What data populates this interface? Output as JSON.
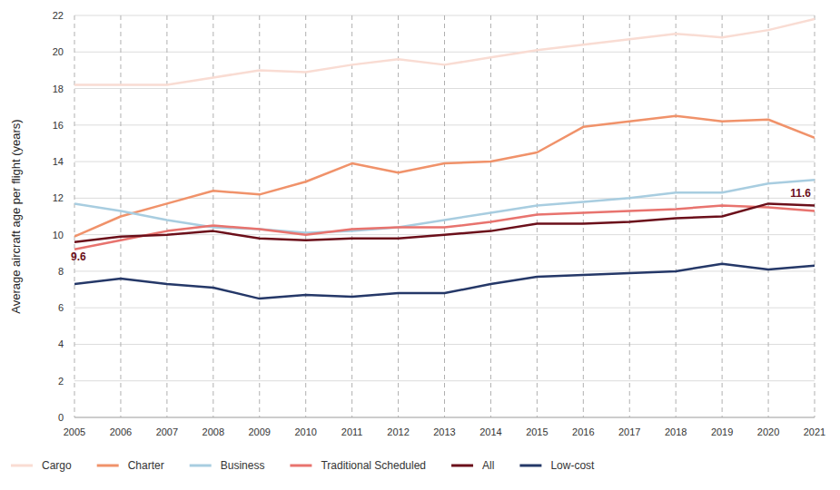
{
  "chart_data": {
    "type": "line",
    "y_label": "Average aircraft age per flight (years)",
    "x": [
      2005,
      2006,
      2007,
      2008,
      2009,
      2010,
      2011,
      2012,
      2013,
      2014,
      2015,
      2016,
      2017,
      2018,
      2019,
      2020,
      2021
    ],
    "xlim": [
      2005,
      2021
    ],
    "xticks": [
      2005,
      2006,
      2007,
      2008,
      2009,
      2010,
      2011,
      2012,
      2013,
      2014,
      2015,
      2016,
      2017,
      2018,
      2019,
      2020,
      2021
    ],
    "ylim": [
      0,
      22
    ],
    "yticks": [
      0,
      2,
      4,
      6,
      8,
      10,
      12,
      14,
      16,
      18,
      20,
      22
    ],
    "grid": true,
    "legend": "bottom",
    "series": [
      {
        "name": "Cargo",
        "color": "#f9dcd3",
        "values": [
          18.2,
          18.2,
          18.2,
          18.6,
          19.0,
          18.9,
          19.3,
          19.6,
          19.3,
          19.7,
          20.1,
          20.4,
          20.7,
          21.0,
          20.8,
          21.2,
          21.8
        ]
      },
      {
        "name": "Charter",
        "color": "#f0926a",
        "values": [
          9.9,
          11.0,
          11.7,
          12.4,
          12.2,
          12.9,
          13.9,
          13.4,
          13.9,
          14.0,
          14.5,
          15.9,
          16.2,
          16.5,
          16.2,
          16.3,
          15.3
        ]
      },
      {
        "name": "Business",
        "color": "#a8cde0",
        "values": [
          11.7,
          11.3,
          10.8,
          10.4,
          10.3,
          10.1,
          10.2,
          10.4,
          10.8,
          11.2,
          11.6,
          11.8,
          12.0,
          12.3,
          12.3,
          12.8,
          13.0
        ]
      },
      {
        "name": "Traditional Scheduled",
        "color": "#e8736e",
        "values": [
          9.2,
          9.7,
          10.2,
          10.5,
          10.3,
          10.0,
          10.3,
          10.4,
          10.4,
          10.7,
          11.1,
          11.2,
          11.3,
          11.4,
          11.6,
          11.5,
          11.3
        ]
      },
      {
        "name": "All",
        "color": "#6b0f1a",
        "values": [
          9.6,
          9.9,
          10.0,
          10.2,
          9.8,
          9.7,
          9.8,
          9.8,
          10.0,
          10.2,
          10.6,
          10.6,
          10.7,
          10.9,
          11.0,
          11.7,
          11.6
        ]
      },
      {
        "name": "Low-cost",
        "color": "#253868",
        "values": [
          7.3,
          7.6,
          7.3,
          7.1,
          6.5,
          6.7,
          6.6,
          6.8,
          6.8,
          7.3,
          7.7,
          7.8,
          7.9,
          8.0,
          8.4,
          8.1,
          8.3
        ]
      }
    ],
    "annotations": [
      {
        "text": "9.6",
        "x": 2005,
        "y": 9.6,
        "color": "#6b0f1a"
      },
      {
        "text": "11.6",
        "x": 2021,
        "y": 11.6,
        "color": "#6b0f1a"
      }
    ]
  }
}
